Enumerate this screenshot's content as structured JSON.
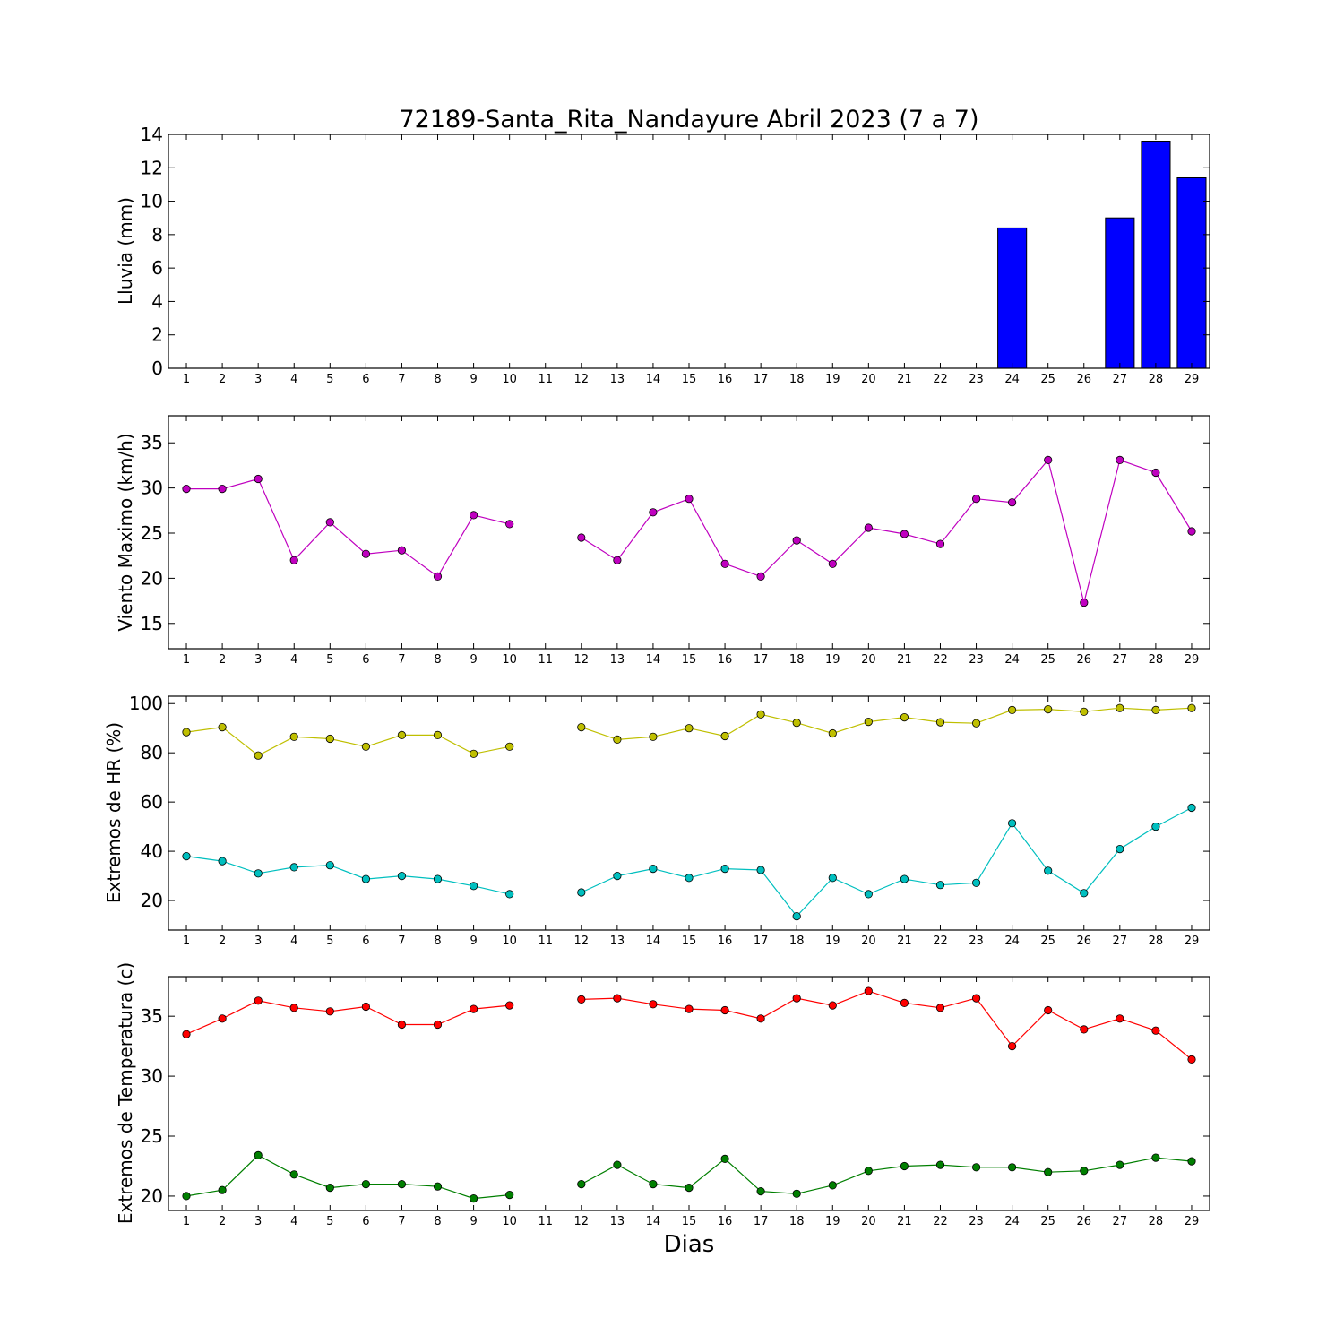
{
  "chart_data": [
    {
      "type": "bar",
      "title": "72189-Santa_Rita_Nandayure Abril 2023  (7 a 7)",
      "ylabel": "Lluvia (mm)",
      "ylim": [
        0,
        14
      ],
      "yticks": [
        0,
        2,
        4,
        6,
        8,
        10,
        12,
        14
      ],
      "xticks": [
        1,
        2,
        3,
        4,
        5,
        6,
        7,
        8,
        9,
        10,
        11,
        12,
        13,
        14,
        15,
        16,
        17,
        18,
        19,
        20,
        21,
        22,
        23,
        24,
        25,
        26,
        27,
        28,
        29
      ],
      "x": [
        1,
        2,
        3,
        4,
        5,
        6,
        7,
        8,
        9,
        10,
        12,
        13,
        14,
        15,
        16,
        17,
        18,
        19,
        20,
        21,
        22,
        23,
        24,
        25,
        26,
        27,
        28,
        29
      ],
      "series": [
        {
          "values": [
            0,
            0,
            0,
            0,
            0,
            0,
            0,
            0,
            0,
            0,
            0,
            0,
            0,
            0,
            0,
            0,
            0,
            0,
            0,
            0,
            0,
            0,
            8.4,
            0,
            0,
            9.0,
            13.6,
            11.4
          ],
          "color": "#0000ff"
        }
      ]
    },
    {
      "type": "line",
      "ylabel": "Viento Maximo (km/h)",
      "ylim": [
        12.2,
        38
      ],
      "yticks": [
        15,
        20,
        25,
        30,
        35
      ],
      "xticks": [
        1,
        2,
        3,
        4,
        5,
        6,
        7,
        8,
        9,
        10,
        11,
        12,
        13,
        14,
        15,
        16,
        17,
        18,
        19,
        20,
        21,
        22,
        23,
        24,
        25,
        26,
        27,
        28,
        29
      ],
      "x": [
        1,
        2,
        3,
        4,
        5,
        6,
        7,
        8,
        9,
        10,
        11,
        12,
        13,
        14,
        15,
        16,
        17,
        18,
        19,
        20,
        21,
        22,
        23,
        24,
        25,
        26,
        27,
        28,
        29
      ],
      "series": [
        {
          "values": [
            29.9,
            29.9,
            31.0,
            22.0,
            26.2,
            22.7,
            23.1,
            20.2,
            27.0,
            26.0,
            null,
            24.5,
            22.0,
            27.3,
            28.8,
            21.6,
            20.2,
            24.2,
            21.6,
            25.6,
            24.9,
            23.8,
            28.8,
            28.4,
            33.1,
            17.3,
            33.1,
            31.7,
            25.2
          ],
          "color": "#bf00bf"
        }
      ]
    },
    {
      "type": "line",
      "ylabel": "Extremos de HR (%)",
      "ylim": [
        8,
        103
      ],
      "yticks": [
        20,
        40,
        60,
        80,
        100
      ],
      "xticks": [
        1,
        2,
        3,
        4,
        5,
        6,
        7,
        8,
        9,
        10,
        11,
        12,
        13,
        14,
        15,
        16,
        17,
        18,
        19,
        20,
        21,
        22,
        23,
        24,
        25,
        26,
        27,
        28,
        29
      ],
      "x": [
        1,
        2,
        3,
        4,
        5,
        6,
        7,
        8,
        9,
        10,
        11,
        12,
        13,
        14,
        15,
        16,
        17,
        18,
        19,
        20,
        21,
        22,
        23,
        24,
        25,
        26,
        27,
        28,
        29
      ],
      "series": [
        {
          "values": [
            88.4,
            90.4,
            78.9,
            86.5,
            85.7,
            82.5,
            87.2,
            87.2,
            79.6,
            82.5,
            null,
            90.4,
            85.4,
            86.5,
            90.0,
            86.8,
            95.6,
            92.2,
            87.9,
            92.6,
            94.4,
            92.4,
            92.0,
            97.4,
            97.7,
            96.7,
            98.2,
            97.4,
            98.2
          ],
          "color": "#bfbf00"
        },
        {
          "values": [
            38.0,
            36.0,
            31.0,
            33.5,
            34.3,
            28.7,
            30.0,
            28.7,
            25.9,
            22.6,
            null,
            23.3,
            30.0,
            32.9,
            29.2,
            32.9,
            32.4,
            13.6,
            29.2,
            22.6,
            28.7,
            26.3,
            27.2,
            51.4,
            32.1,
            23.0,
            40.9,
            50.0,
            57.7
          ],
          "color": "#00bfbf"
        }
      ]
    },
    {
      "type": "line",
      "ylabel": "Extremos de Temperatura (c)",
      "xlabel": "Dias",
      "ylim": [
        18.8,
        38.3
      ],
      "yticks": [
        20,
        25,
        30,
        35
      ],
      "xticks": [
        1,
        2,
        3,
        4,
        5,
        6,
        7,
        8,
        9,
        10,
        11,
        12,
        13,
        14,
        15,
        16,
        17,
        18,
        19,
        20,
        21,
        22,
        23,
        24,
        25,
        26,
        27,
        28,
        29
      ],
      "x": [
        1,
        2,
        3,
        4,
        5,
        6,
        7,
        8,
        9,
        10,
        11,
        12,
        13,
        14,
        15,
        16,
        17,
        18,
        19,
        20,
        21,
        22,
        23,
        24,
        25,
        26,
        27,
        28,
        29
      ],
      "series": [
        {
          "values": [
            33.5,
            34.8,
            36.3,
            35.7,
            35.4,
            35.8,
            34.3,
            34.3,
            35.6,
            35.9,
            null,
            36.4,
            36.5,
            36.0,
            35.6,
            35.5,
            34.8,
            36.5,
            35.9,
            37.1,
            36.1,
            35.7,
            36.5,
            32.5,
            35.5,
            33.9,
            34.8,
            33.8,
            31.4
          ],
          "color": "#ff0000"
        },
        {
          "values": [
            20.0,
            20.5,
            23.4,
            21.8,
            20.7,
            21.0,
            21.0,
            20.8,
            19.8,
            20.1,
            null,
            21.0,
            22.6,
            21.0,
            20.7,
            23.1,
            20.4,
            20.2,
            20.9,
            22.1,
            22.5,
            22.6,
            22.4,
            22.4,
            22.0,
            22.1,
            22.6,
            23.2,
            22.9
          ],
          "color": "#007f00"
        }
      ]
    }
  ]
}
